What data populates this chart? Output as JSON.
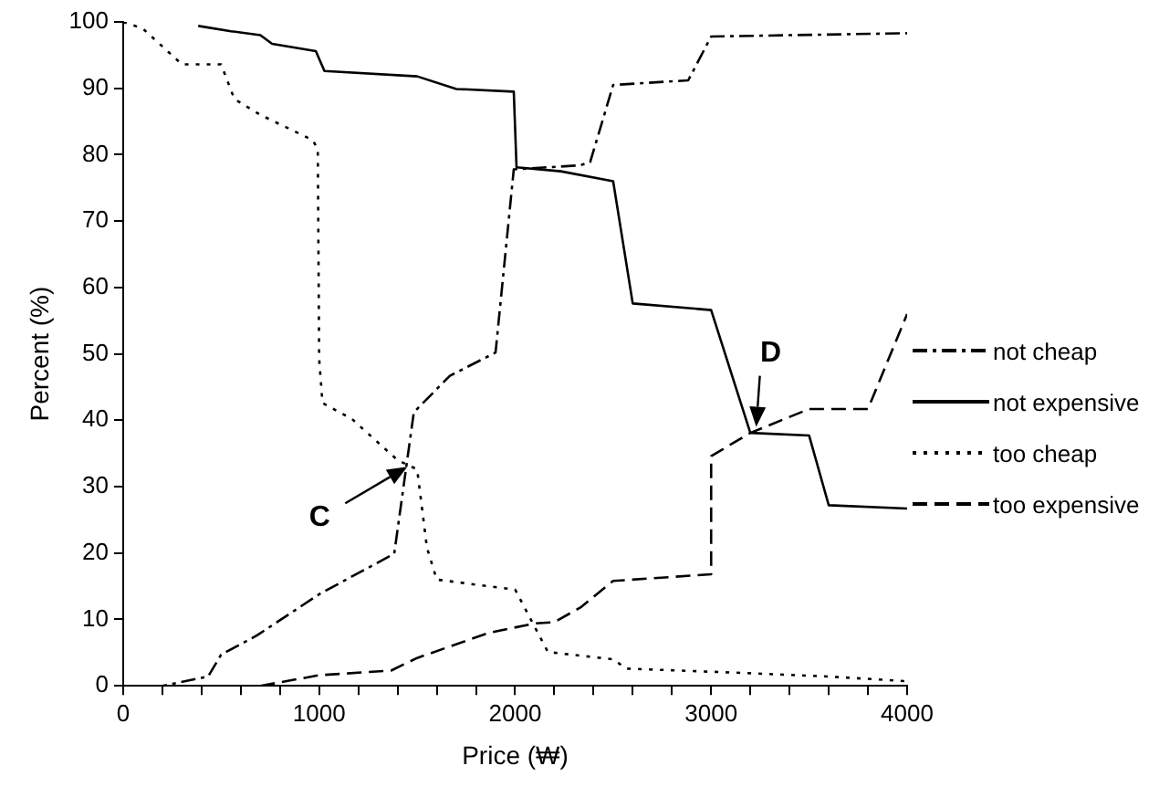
{
  "chart_data": {
    "type": "line",
    "xlabel": "Price (₩)",
    "ylabel": "Percent (%)",
    "xlim": [
      0,
      4000
    ],
    "xticks": [
      0,
      {
        "value": 200,
        "label": null
      },
      {
        "value": 400,
        "label": null
      },
      {
        "value": 600,
        "label": null
      },
      {
        "value": 800,
        "label": null
      },
      1000,
      {
        "value": 1200,
        "label": null
      },
      {
        "value": 1400,
        "label": null
      },
      {
        "value": 1600,
        "label": null
      },
      {
        "value": 1800,
        "label": null
      },
      2000,
      {
        "value": 2200,
        "label": null
      },
      {
        "value": 2400,
        "label": null
      },
      {
        "value": 2600,
        "label": null
      },
      {
        "value": 2800,
        "label": null
      },
      3000,
      {
        "value": 3200,
        "label": null
      },
      {
        "value": 3400,
        "label": null
      },
      {
        "value": 3600,
        "label": null
      },
      {
        "value": 3800,
        "label": null
      },
      4000
    ],
    "ylim": [
      0,
      100
    ],
    "yticks": [
      0,
      10,
      20,
      30,
      40,
      50,
      60,
      70,
      80,
      90,
      100
    ],
    "grid": false,
    "legend": "right",
    "marker": "none",
    "series": [
      {
        "name": "not cheap",
        "color": "#000000",
        "line_style": "dashdot",
        "x": [
          0,
          200,
          433,
          500,
          683,
          1000,
          1383,
          1483,
          1667,
          1900,
          1993,
          2333,
          2383,
          2500,
          2883,
          3000,
          4000
        ],
        "values": [
          0,
          0,
          1.4,
          4.7,
          7.6,
          13.8,
          19.9,
          41.2,
          46.7,
          50.2,
          77.8,
          78.4,
          78.9,
          90.5,
          91.2,
          97.8,
          98.3
        ]
      },
      {
        "name": "not expensive",
        "color": "#000000",
        "line_style": "solid",
        "x": [
          383,
          550,
          700,
          760,
          983,
          1027,
          1500,
          1700,
          1993,
          2007,
          2233,
          2500,
          2600,
          3000,
          3200,
          3500,
          3600,
          4000
        ],
        "values": [
          99.4,
          98.6,
          98,
          96.7,
          95.6,
          92.6,
          91.8,
          89.9,
          89.5,
          78.1,
          77.5,
          76,
          57.6,
          56.6,
          38.1,
          37.7,
          27.2,
          26.7
        ]
      },
      {
        "name": "too cheap",
        "color": "#000000",
        "line_style": "dotted",
        "x": [
          0,
          100,
          300,
          500,
          567,
          700,
          967,
          993,
          1000,
          1017,
          1167,
          1400,
          1500,
          1550,
          1600,
          2000,
          2167,
          2500,
          2567,
          3200,
          3600,
          4000
        ],
        "values": [
          100,
          99,
          93.6,
          93.6,
          88.4,
          86,
          82.2,
          80.8,
          49.2,
          42.6,
          40.2,
          34,
          32.6,
          20.8,
          16,
          14.5,
          5.1,
          4,
          2.6,
          1.9,
          1.4,
          0.7
        ]
      },
      {
        "name": "too expensive",
        "color": "#000000",
        "line_style": "dashed",
        "x": [
          700,
          1000,
          1367,
          1500,
          1867,
          2100,
          2200,
          2333,
          2500,
          3000,
          3000,
          3200,
          3500,
          3800,
          4000
        ],
        "values": [
          0,
          1.6,
          2.3,
          4.2,
          8,
          9.4,
          9.6,
          11.8,
          15.8,
          16.8,
          34.6,
          38.1,
          41.7,
          41.7,
          56
        ]
      }
    ],
    "annotations": [
      {
        "text": "C",
        "x": 1450,
        "y": 33
      },
      {
        "text": "D",
        "x": 3230,
        "y": 39
      }
    ]
  }
}
